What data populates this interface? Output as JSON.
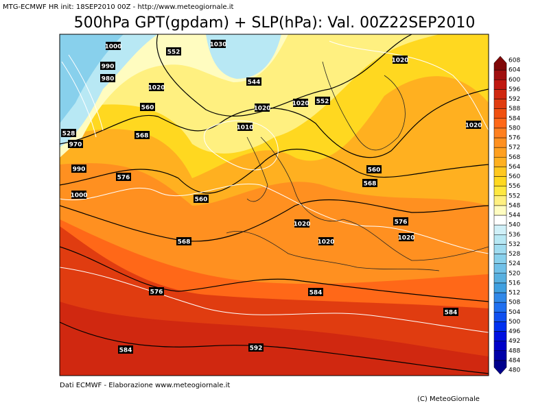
{
  "header": {
    "run_info": "MTG-ECMWF HR init: 18SEP2010 00Z - http://www.meteogiornale.it",
    "title": "500hPa GPT(gpdam) + SLP(hPa): Val. 00Z22SEP2010"
  },
  "map": {
    "labels": [
      "1000",
      "990",
      "980",
      "1020",
      "552",
      "1030",
      "544",
      "560",
      "1020",
      "1020",
      "552",
      "1010",
      "1020",
      "1020",
      "568",
      "528",
      "970",
      "990",
      "576",
      "1000",
      "560",
      "560",
      "568",
      "1020",
      "576",
      "1020",
      "1020",
      "568",
      "576",
      "584",
      "584",
      "584",
      "592"
    ]
  },
  "colorbar": {
    "levels": [
      480,
      484,
      488,
      492,
      496,
      500,
      504,
      508,
      512,
      516,
      520,
      524,
      528,
      532,
      536,
      540,
      544,
      548,
      552,
      556,
      560,
      564,
      568,
      572,
      576,
      580,
      584,
      588,
      592,
      596,
      600,
      604,
      608
    ],
    "colors": [
      "#00008b",
      "#0000a8",
      "#0000c8",
      "#0010e0",
      "#0030f0",
      "#1050f0",
      "#2070f0",
      "#3088e8",
      "#40a0e0",
      "#58b0e0",
      "#70c0e8",
      "#88d0ec",
      "#a0dcf0",
      "#b8e8f4",
      "#d0f0f8",
      "#ffffff",
      "#fffcc0",
      "#fff080",
      "#ffe840",
      "#ffd820",
      "#ffc820",
      "#ffb020",
      "#ffa020",
      "#ff9020",
      "#ff8020",
      "#ff6818",
      "#f05010",
      "#e03c10",
      "#d02810",
      "#c01810",
      "#a01010",
      "#800808"
    ]
  },
  "footer": {
    "source": "Dati ECMWF - Elaborazione www.meteogiornale.it",
    "copyright": "(C) MeteoGiornale"
  }
}
